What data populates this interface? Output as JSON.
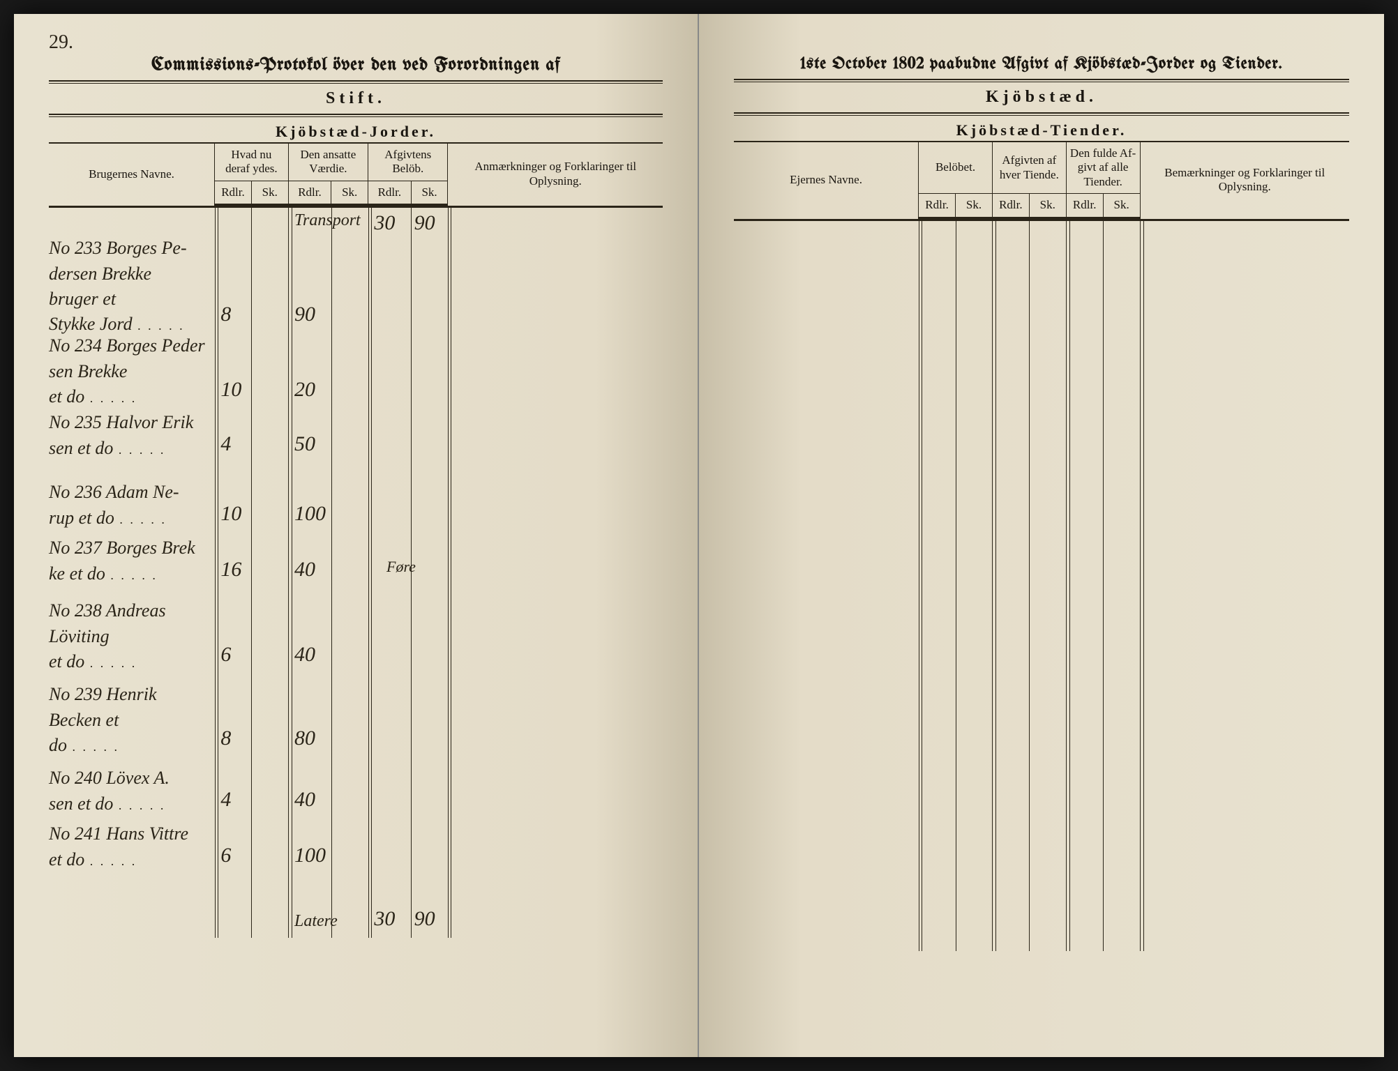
{
  "page_number": "29.",
  "left": {
    "title": "Commissions-Protokol över den ved Forordningen af",
    "section": "Stift.",
    "subsection": "Kjöbstæd-Jorder.",
    "columns": {
      "c1": "Brugernes Navne.",
      "c2": "Hvad nu deraf ydes.",
      "c3": "Den ansatte Værdie.",
      "c4": "Afgivtens Belöb.",
      "c5": "Anmærkninger og Forklaringer til Oplysning."
    },
    "subcols": {
      "rdlr": "Rdlr.",
      "sk": "Sk."
    },
    "transport": {
      "label": "Transport",
      "c4a": "30",
      "c4b": "90"
    },
    "entries": [
      {
        "no": "No 233",
        "name": "Borges Pe-\ndersen Brekke\nbruger et\nStykke Jord",
        "c2": "8",
        "c3": "90"
      },
      {
        "no": "No 234",
        "name": "Borges Peder\nsen Brekke\net do",
        "c2": "10",
        "c3": "20"
      },
      {
        "no": "No 235",
        "name": "Halvor Erik\nsen et do",
        "c2": "4",
        "c3": "50"
      },
      {
        "no": "No 236",
        "name": "Adam Ne-\nrup et do",
        "c2": "10",
        "c3": "100"
      },
      {
        "no": "No 237",
        "name": "Borges Brek\nke et do",
        "c2": "16",
        "c3": "40",
        "note": "Føre"
      },
      {
        "no": "No 238",
        "name": "Andreas\nLöviting\net do",
        "c2": "6",
        "c3": "40"
      },
      {
        "no": "No 239",
        "name": "Henrik\nBecken et\ndo",
        "c2": "8",
        "c3": "80"
      },
      {
        "no": "No 240",
        "name": "Lövex A.\nsen et do",
        "c2": "4",
        "c3": "40"
      },
      {
        "no": "No 241",
        "name": "Hans Vittre\net do",
        "c2": "6",
        "c3": "100"
      }
    ],
    "latere": {
      "label": "Latere",
      "c4a": "30",
      "c4b": "90"
    }
  },
  "right": {
    "title": "1ste October 1802 paabudne Afgivt af Kjöbstæd-Jorder og Tiender.",
    "section": "Kjöbstæd.",
    "subsection": "Kjöbstæd-Tiender.",
    "columns": {
      "c1": "Ejernes Navne.",
      "c2": "Belöbet.",
      "c3": "Afgivten af hver Tiende.",
      "c4": "Den fulde Af-givt af alle Tiender.",
      "c5": "Bemærkninger og Forklaringer til Oplysning."
    },
    "subcols": {
      "rdlr": "Rdlr.",
      "sk": "Sk."
    }
  },
  "style": {
    "paper": "#e4dcc8",
    "ink": "#1a1610",
    "rule": "#2a2418"
  }
}
